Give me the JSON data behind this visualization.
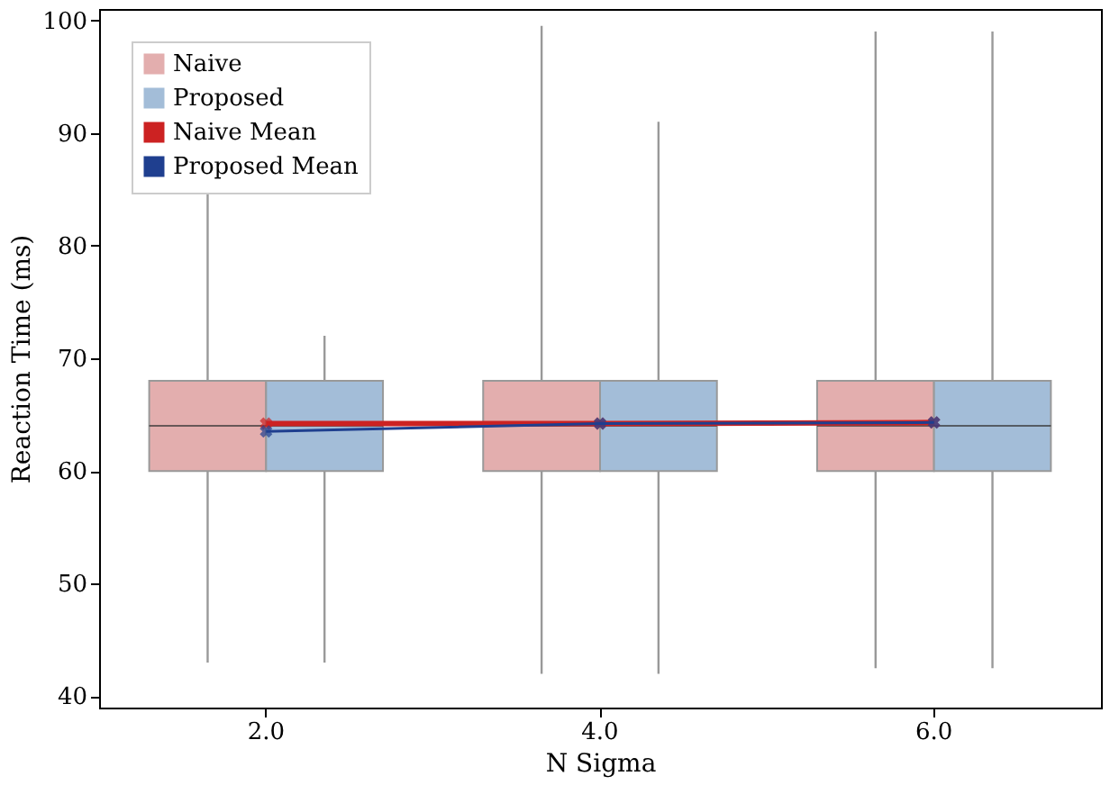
{
  "chart_data": {
    "type": "box",
    "xlabel": "N Sigma",
    "ylabel": "Reaction Time (ms)",
    "categories": [
      "2.0",
      "4.0",
      "6.0"
    ],
    "ylim": [
      39,
      101
    ],
    "yticks": [
      40,
      50,
      60,
      70,
      80,
      90,
      100
    ],
    "grid": false,
    "legend": "top left",
    "marker": "cross",
    "line_style": "solid",
    "series": [
      {
        "name": "Naive",
        "color": "#e3aeae",
        "boxes": [
          {
            "low": 43,
            "q1": 60,
            "median": 64,
            "q3": 68,
            "high": 86
          },
          {
            "low": 42,
            "q1": 60,
            "median": 64,
            "q3": 68,
            "high": 99.5
          },
          {
            "low": 42.5,
            "q1": 60,
            "median": 64,
            "q3": 68,
            "high": 99
          }
        ]
      },
      {
        "name": "Proposed",
        "color": "#a3bdd8",
        "boxes": [
          {
            "low": 43,
            "q1": 60,
            "median": 64,
            "q3": 68,
            "high": 72
          },
          {
            "low": 42,
            "q1": 60,
            "median": 64,
            "q3": 68,
            "high": 91
          },
          {
            "low": 42.5,
            "q1": 60,
            "median": 64,
            "q3": 68,
            "high": 99
          }
        ]
      },
      {
        "name": "Naive Mean",
        "type": "line",
        "color": "#cc2222",
        "values": [
          64.2,
          64.2,
          64.3
        ]
      },
      {
        "name": "Proposed Mean",
        "type": "line",
        "color": "#1f3f8f",
        "values": [
          63.5,
          64.2,
          64.3
        ]
      }
    ]
  }
}
